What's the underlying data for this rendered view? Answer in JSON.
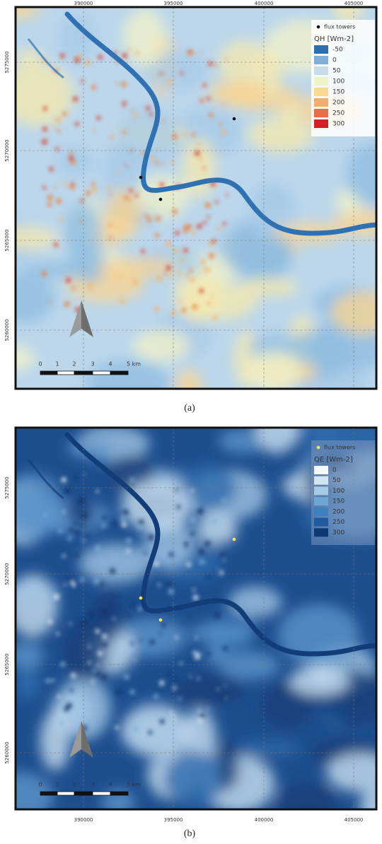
{
  "panels": [
    {
      "caption": "(a)",
      "x_ticks": [
        "390000",
        "395000",
        "400000",
        "405000"
      ],
      "y_ticks": [
        "5275000",
        "5270000",
        "5265000",
        "5260000"
      ],
      "legend": {
        "marker_label": "flux towers",
        "title": "QH [Wm-2]",
        "entries": [
          {
            "label": "-50",
            "color": "#2c6fb0"
          },
          {
            "label": "0",
            "color": "#7fb0d6"
          },
          {
            "label": "50",
            "color": "#c4dcec"
          },
          {
            "label": "100",
            "color": "#eef3c9"
          },
          {
            "label": "150",
            "color": "#fbd98e"
          },
          {
            "label": "200",
            "color": "#f6ad6a"
          },
          {
            "label": "250",
            "color": "#ea6d47"
          },
          {
            "label": "300",
            "color": "#d41f26"
          }
        ]
      },
      "scale_bar": [
        "0",
        "1",
        "2",
        "3",
        "4",
        "5 km"
      ]
    },
    {
      "caption": "(b)",
      "x_ticks": [
        "390000",
        "395000",
        "400000",
        "405000"
      ],
      "y_ticks": [
        "5275000",
        "5270000",
        "5265000",
        "5260000"
      ],
      "legend": {
        "marker_label": "flux towers",
        "title": "QE [Wm-2]",
        "entries": [
          {
            "label": "0",
            "color": "#f4f8fc"
          },
          {
            "label": "50",
            "color": "#d2e3f2"
          },
          {
            "label": "100",
            "color": "#a8cbe5"
          },
          {
            "label": "150",
            "color": "#6ea6d3"
          },
          {
            "label": "200",
            "color": "#3f7fbf"
          },
          {
            "label": "250",
            "color": "#1f5b9e"
          },
          {
            "label": "300",
            "color": "#0e3a74"
          }
        ]
      },
      "scale_bar": [
        "0",
        "1",
        "2",
        "3",
        "4",
        "5 km"
      ]
    }
  ]
}
